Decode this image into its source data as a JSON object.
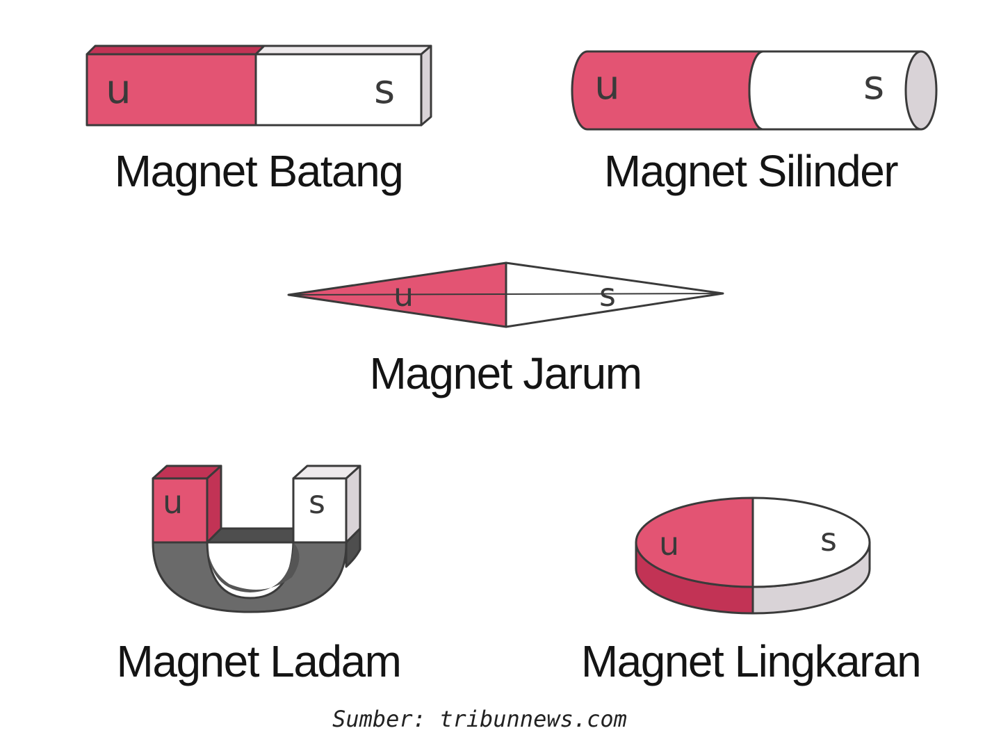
{
  "colors": {
    "north_pole": "#e35473",
    "south_pole": "#ffffff",
    "south_side": "#d9d3d7",
    "north_side": "#c23355",
    "horseshoe_body": "#6a6a6a",
    "outline": "#3a3a3a"
  },
  "magnets": {
    "batang": {
      "caption": "Magnet Batang",
      "north": "u",
      "south": "s"
    },
    "silinder": {
      "caption": "Magnet Silinder",
      "north": "u",
      "south": "s"
    },
    "jarum": {
      "caption": "Magnet Jarum",
      "north": "u",
      "south": "s"
    },
    "ladam": {
      "caption": "Magnet Ladam",
      "north": "u",
      "south": "s"
    },
    "lingkaran": {
      "caption": "Magnet Lingkaran",
      "north": "u",
      "south": "s"
    }
  },
  "source": "Sumber: tribunnews.com"
}
